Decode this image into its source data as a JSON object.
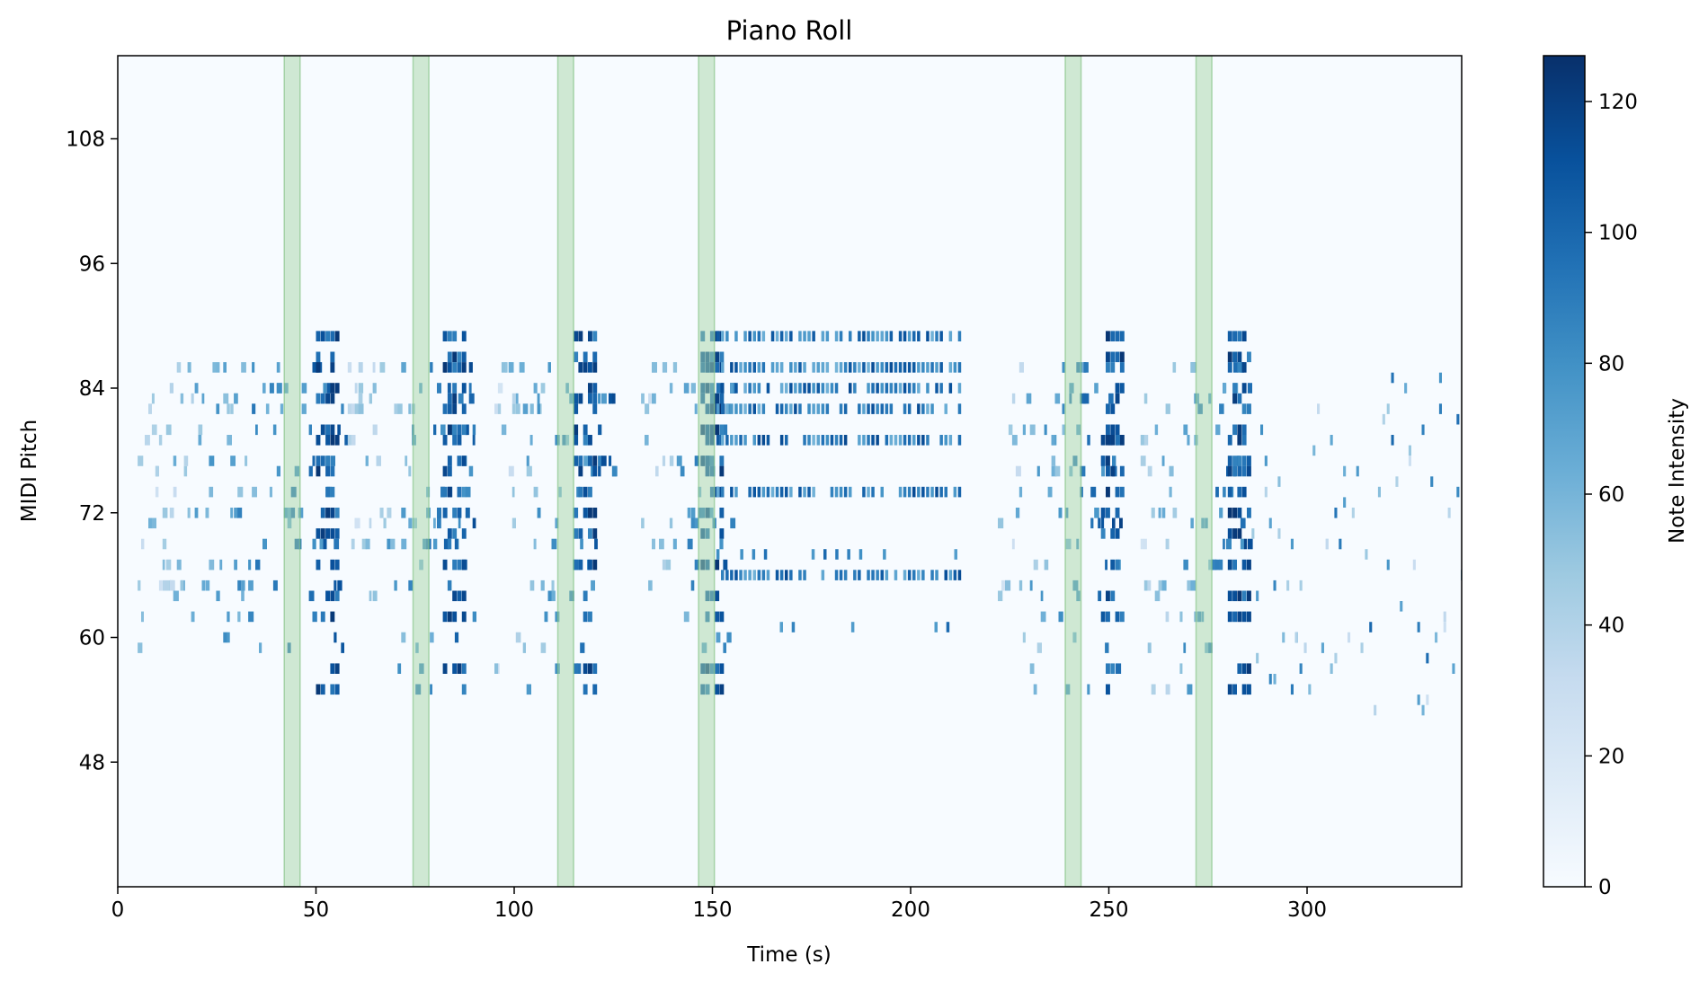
{
  "chart_data": {
    "type": "heatmap",
    "title": "Piano Roll",
    "xlabel": "Time (s)",
    "ylabel": "MIDI Pitch",
    "xlim": [
      0,
      339
    ],
    "ylim": [
      36,
      116
    ],
    "xticks": [
      0,
      50,
      100,
      150,
      200,
      250,
      300
    ],
    "yticks": [
      48,
      60,
      72,
      84,
      96,
      108
    ],
    "colormap": "Blues",
    "colorbar": {
      "label": "Note Intensity",
      "range": [
        0,
        127
      ],
      "ticks": [
        0,
        20,
        40,
        60,
        80,
        100,
        120
      ]
    },
    "highlight_color": "#a8d5a8",
    "highlight_regions": [
      [
        42,
        46
      ],
      [
        74.5,
        78.5
      ],
      [
        111,
        115
      ],
      [
        146.5,
        150.5
      ],
      [
        239,
        243
      ],
      [
        272,
        276
      ]
    ],
    "dense_sections": [
      {
        "start": 5,
        "end": 58,
        "peak": 54,
        "low": 59,
        "high": 90
      },
      {
        "start": 58,
        "end": 90,
        "peak": 86,
        "low": 55,
        "high": 90
      },
      {
        "start": 95,
        "end": 125,
        "peak": 119,
        "low": 55,
        "high": 90
      },
      {
        "start": 132,
        "end": 155,
        "peak": 151,
        "low": 57,
        "high": 88
      },
      {
        "start": 222,
        "end": 253,
        "peak": 252,
        "low": 55,
        "high": 90
      },
      {
        "start": 258,
        "end": 285,
        "peak": 284,
        "low": 55,
        "high": 90
      }
    ],
    "sustained_section": {
      "start": 151,
      "end": 213,
      "pitches": [
        89,
        86,
        84,
        82,
        79,
        74,
        66
      ]
    },
    "sparse_section": {
      "start": 286,
      "end": 339,
      "low": 53,
      "high": 85
    }
  },
  "colors": {
    "background": "#f7fbff",
    "axis": "#000000"
  }
}
